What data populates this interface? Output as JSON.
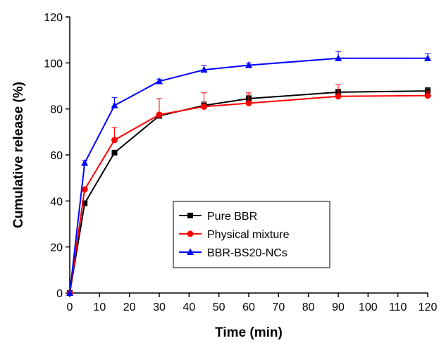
{
  "chart_data": {
    "type": "line",
    "title": "",
    "xlabel": "Time (min)",
    "ylabel": "Cumulative release (%)",
    "xlim": [
      0,
      120
    ],
    "ylim": [
      0,
      120
    ],
    "xticks": [
      0,
      10,
      20,
      30,
      40,
      50,
      60,
      70,
      80,
      90,
      100,
      110,
      120
    ],
    "yticks": [
      0,
      20,
      40,
      60,
      80,
      100,
      120
    ],
    "grid": false,
    "legend_position": "bottom-right",
    "series": [
      {
        "name": "Pure BBR",
        "color": "#000000",
        "marker": "square",
        "x": [
          0,
          5,
          15,
          30,
          45,
          60,
          90,
          120
        ],
        "y": [
          0,
          39,
          61,
          77,
          81.5,
          84.5,
          87.3,
          87.8
        ],
        "err": [
          0,
          1,
          0.5,
          1,
          1.5,
          1.5,
          1.2,
          1.5
        ]
      },
      {
        "name": "Physical mixture",
        "color": "#ff0000",
        "marker": "circle",
        "x": [
          0,
          5,
          15,
          30,
          45,
          60,
          90,
          120
        ],
        "y": [
          0,
          45,
          66.5,
          77.5,
          81,
          82.5,
          85.5,
          85.8
        ],
        "err": [
          0,
          0,
          5.5,
          7,
          6,
          4.5,
          5,
          2
        ]
      },
      {
        "name": "BBR-BS20-NCs",
        "color": "#0000ff",
        "marker": "triangle",
        "x": [
          0,
          5,
          15,
          30,
          45,
          60,
          90,
          120
        ],
        "y": [
          0,
          56.5,
          81.5,
          92,
          97,
          99,
          102,
          102
        ],
        "err": [
          0,
          1,
          3.5,
          1,
          2,
          1,
          3,
          2
        ]
      }
    ]
  }
}
